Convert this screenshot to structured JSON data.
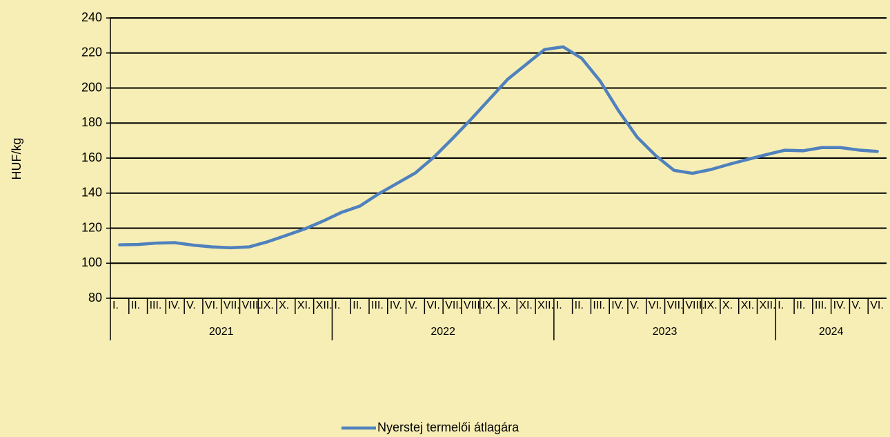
{
  "chart_data": {
    "type": "line",
    "y_label": "HUF/kg",
    "ylim": [
      80,
      240
    ],
    "yticks": [
      80,
      100,
      120,
      140,
      160,
      180,
      200,
      220,
      240
    ],
    "grid": true,
    "legend": "bottom",
    "category_groups": [
      {
        "label": "2021",
        "categories": [
          "I.",
          "II.",
          "III.",
          "IV.",
          "V.",
          "VI.",
          "VII.",
          "VIII.",
          "IX.",
          "X.",
          "XI.",
          "XII."
        ]
      },
      {
        "label": "2022",
        "categories": [
          "I.",
          "II.",
          "III.",
          "IV.",
          "V.",
          "VI.",
          "VII.",
          "VIII.",
          "IX.",
          "X.",
          "XI.",
          "XII."
        ]
      },
      {
        "label": "2023",
        "categories": [
          "I.",
          "II.",
          "III.",
          "IV.",
          "V.",
          "VI.",
          "VII.",
          "VIII.",
          "IX.",
          "X.",
          "XI.",
          "XII."
        ]
      },
      {
        "label": "2024",
        "categories": [
          "I.",
          "II.",
          "III.",
          "IV.",
          "V.",
          "VI."
        ]
      }
    ],
    "series": [
      {
        "name": "Nyerstej termelői átlagára",
        "color": "#4f81bd",
        "values": [
          110.5,
          110.7,
          111.5,
          111.7,
          110.3,
          109.3,
          108.8,
          109.3,
          112.2,
          115.8,
          119.5,
          124,
          129,
          132.6,
          139.5,
          145.5,
          151.5,
          160.5,
          171,
          182,
          193.5,
          205,
          213.5,
          222,
          223.5,
          217,
          204,
          187,
          172,
          161.5,
          153,
          151.3,
          153.5,
          156.5,
          159.3,
          162,
          164.5,
          164.2,
          166,
          166,
          164.6,
          163.8
        ]
      }
    ]
  }
}
